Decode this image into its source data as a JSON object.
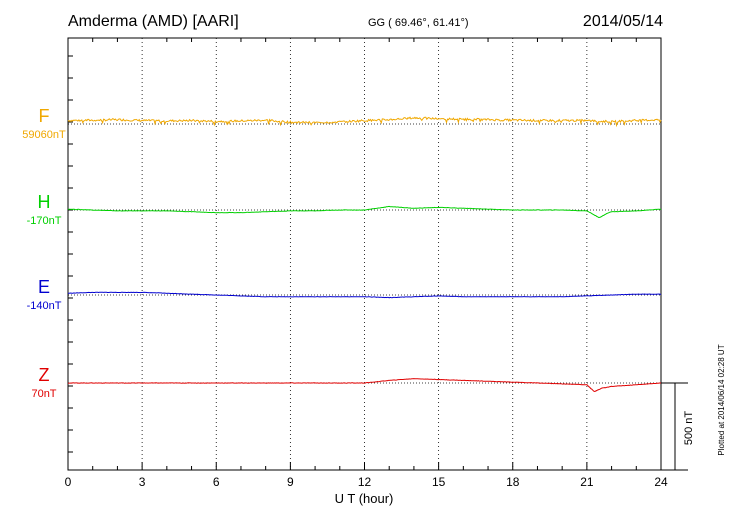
{
  "header": {
    "station": "Amderma (AMD)  [AARI]",
    "coords": "GG ( 69.46°,  61.41°)",
    "date": "2014/05/14"
  },
  "footer": {
    "plotted": "Plotted at 2014/06/14 02:28 UT"
  },
  "chart_data": {
    "type": "line",
    "xlabel": "U T (hour)",
    "xlim": [
      0,
      24
    ],
    "xticks": [
      0,
      3,
      6,
      9,
      12,
      15,
      18,
      21,
      24
    ],
    "grid": "vertical dotted",
    "scale_bar": {
      "label": "500 nT",
      "value": 500
    },
    "series": [
      {
        "name": "F",
        "baseline": "59060nT",
        "color": "#f0a800",
        "x": [
          0,
          1,
          2,
          3,
          4,
          5,
          6,
          7,
          8,
          9,
          10,
          11,
          12,
          13,
          14,
          15,
          16,
          17,
          18,
          19,
          20,
          21,
          21.5,
          22,
          23,
          24
        ],
        "y": [
          20,
          22,
          25,
          20,
          18,
          20,
          15,
          18,
          22,
          10,
          8,
          12,
          20,
          25,
          35,
          30,
          28,
          25,
          22,
          20,
          20,
          20,
          15,
          15,
          20,
          25
        ]
      },
      {
        "name": "H",
        "baseline": "-170nT",
        "color": "#00d000",
        "x": [
          0,
          1,
          2,
          3,
          4,
          5,
          6,
          7,
          8,
          9,
          10,
          11,
          12,
          13,
          13.5,
          14,
          15,
          16,
          17,
          18,
          19,
          20,
          21,
          21.2,
          21.5,
          21.8,
          22,
          23,
          24
        ],
        "y": [
          5,
          0,
          -5,
          -5,
          -5,
          -10,
          -15,
          -15,
          -10,
          -5,
          -5,
          0,
          0,
          20,
          15,
          10,
          15,
          10,
          5,
          0,
          0,
          0,
          -5,
          -20,
          -45,
          -20,
          -10,
          -5,
          5
        ]
      },
      {
        "name": "E",
        "baseline": "-140nT",
        "color": "#0000d0",
        "x": [
          0,
          1,
          2,
          3,
          4,
          5,
          6,
          7,
          8,
          9,
          10,
          11,
          12,
          13,
          14,
          15,
          16,
          17,
          18,
          19,
          20,
          21,
          22,
          23,
          24
        ],
        "y": [
          10,
          15,
          15,
          15,
          10,
          5,
          0,
          -5,
          -10,
          -10,
          -10,
          -10,
          -10,
          -15,
          -10,
          -5,
          -10,
          -10,
          -10,
          -10,
          -10,
          -5,
          0,
          5,
          5
        ]
      },
      {
        "name": "Z",
        "baseline": "70nT",
        "color": "#e00000",
        "x": [
          0,
          1,
          2,
          3,
          4,
          5,
          6,
          7,
          8,
          9,
          10,
          11,
          12,
          13,
          14,
          15,
          16,
          17,
          18,
          19,
          20,
          21,
          21.3,
          21.6,
          22,
          23,
          24
        ],
        "y": [
          0,
          0,
          0,
          0,
          0,
          0,
          0,
          0,
          0,
          0,
          0,
          0,
          0,
          15,
          25,
          20,
          15,
          10,
          5,
          0,
          -5,
          -10,
          -50,
          -30,
          -20,
          -10,
          0
        ]
      }
    ]
  }
}
